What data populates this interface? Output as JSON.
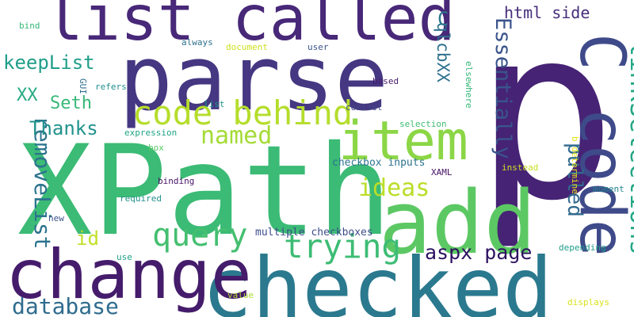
{
  "words": [
    {
      "text": "p",
      "color": "#462375"
    },
    {
      "text": "XPath",
      "color": "#3bbb75"
    },
    {
      "text": "checked",
      "color": "#2b798e"
    },
    {
      "text": "parse",
      "color": "#453781"
    },
    {
      "text": "add",
      "color": "#5cc863"
    },
    {
      "text": "change",
      "color": "#451c6b"
    },
    {
      "text": "list called",
      "color": "#482878"
    },
    {
      "text": "C code",
      "color": "#3e4a89"
    },
    {
      "text": "item",
      "color": "#8bd646"
    },
    {
      "text": "code behind",
      "color": "#b5dd2b"
    },
    {
      "text": "query",
      "color": "#44bf70"
    },
    {
      "text": "trying",
      "color": "#3dbc74"
    },
    {
      "text": "linkSelections",
      "color": "#22a785"
    },
    {
      "text": "removeList",
      "color": "#2c738e"
    },
    {
      "text": "named",
      "color": "#a5db36"
    },
    {
      "text": "ideas",
      "color": "#bade28"
    },
    {
      "text": "database",
      "color": "#2f6c8e"
    },
    {
      "text": "aspx page",
      "color": "#2d1160"
    },
    {
      "text": "Essentially",
      "color": "#3a548c"
    },
    {
      "text": "pulled",
      "color": "#30698e"
    },
    {
      "text": "keepList",
      "color": "#1f9e89"
    },
    {
      "text": "Thanks",
      "color": "#20928c"
    },
    {
      "text": "id",
      "color": "#c0df25"
    },
    {
      "text": "Seth",
      "color": "#37b878"
    },
    {
      "text": "XX",
      "color": "#25ab82"
    },
    {
      "text": "qlcbXX",
      "color": "#2d718e"
    },
    {
      "text": "html side",
      "color": "#472d7b"
    },
    {
      "text": "C",
      "color": "#2a788e"
    },
    {
      "text": "multiple checkboxes",
      "color": "#3d4d8a"
    },
    {
      "text": "checkbox inputs",
      "color": "#2c738e"
    },
    {
      "text": "XAML",
      "color": "#471063"
    },
    {
      "text": "bind",
      "color": "#38b977"
    },
    {
      "text": "always",
      "color": "#2d708e"
    },
    {
      "text": "document",
      "color": "#cde11d"
    },
    {
      "text": "user",
      "color": "#3a548c"
    },
    {
      "text": "GUI",
      "color": "#2e6e8e"
    },
    {
      "text": "refers",
      "color": "#218f8d"
    },
    {
      "text": "based",
      "color": "#481b6d"
    },
    {
      "text": "elsewhere",
      "color": "#35b779"
    },
    {
      "text": "list",
      "color": "#1f988b"
    },
    {
      "text": "control",
      "color": "#3e4989"
    },
    {
      "text": "selection",
      "color": "#40bd72"
    },
    {
      "text": "expression",
      "color": "#20a386"
    },
    {
      "text": "box",
      "color": "#58c765"
    },
    {
      "text": "instead",
      "color": "#c8e020"
    },
    {
      "text": "b determine",
      "color": "#e5e419"
    },
    {
      "text": "binding",
      "color": "#471365"
    },
    {
      "text": "moment",
      "color": "#25838e"
    },
    {
      "text": "required",
      "color": "#21918c"
    },
    {
      "text": "new",
      "color": "#3b528b"
    },
    {
      "text": "use",
      "color": "#1fa187"
    },
    {
      "text": "depending",
      "color": "#1e9c89"
    },
    {
      "text": "value",
      "color": "#addc30"
    },
    {
      "text": "displays",
      "color": "#d8e219"
    }
  ]
}
